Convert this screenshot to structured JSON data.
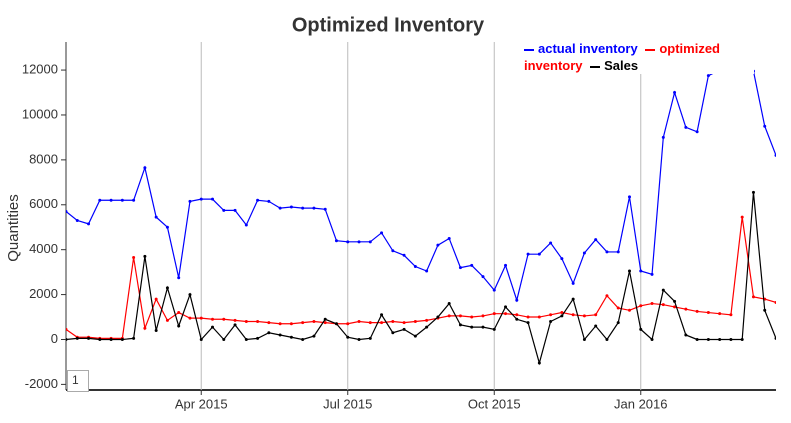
{
  "chart_data": {
    "type": "line",
    "title": "Optimized Inventory",
    "ylabel": "Quantities",
    "categories": [
      null,
      null,
      null,
      null,
      null,
      null,
      null,
      null,
      null,
      null,
      null,
      null,
      "Apr 2015",
      null,
      null,
      null,
      null,
      null,
      null,
      null,
      null,
      null,
      null,
      null,
      null,
      "Jul 2015",
      null,
      null,
      null,
      null,
      null,
      null,
      null,
      null,
      null,
      null,
      null,
      null,
      "Oct 2015",
      null,
      null,
      null,
      null,
      null,
      null,
      null,
      null,
      null,
      null,
      null,
      null,
      "Jan 2016",
      null,
      null,
      null,
      null,
      null,
      null,
      null,
      null,
      null,
      null,
      null,
      null
    ],
    "series": [
      {
        "name": "actual inventory",
        "color": "#0000ff",
        "values": [
          5700,
          5300,
          5150,
          6200,
          6200,
          6200,
          6200,
          7650,
          5450,
          5000,
          2750,
          6150,
          6250,
          6250,
          5750,
          5750,
          5100,
          6200,
          6150,
          5850,
          5900,
          5850,
          5850,
          5800,
          4400,
          4350,
          4350,
          4350,
          4750,
          3950,
          3750,
          3250,
          3050,
          4200,
          4500,
          3200,
          3300,
          2800,
          2200,
          3300,
          1750,
          3800,
          3800,
          4300,
          3600,
          2500,
          3850,
          4450,
          3900,
          3900,
          6350,
          3050,
          2900,
          9000,
          11000,
          9450,
          9250,
          11750,
          12000,
          12050,
          12000,
          11950,
          9500,
          8200
        ]
      },
      {
        "name": "optimized inventory",
        "color": "#ff0000",
        "values": [
          450,
          100,
          100,
          50,
          50,
          50,
          3650,
          500,
          1800,
          850,
          1200,
          950,
          950,
          900,
          900,
          850,
          800,
          800,
          750,
          700,
          700,
          750,
          800,
          750,
          700,
          700,
          800,
          750,
          750,
          800,
          750,
          800,
          850,
          950,
          1050,
          1050,
          1000,
          1050,
          1150,
          1150,
          1100,
          1000,
          1000,
          1100,
          1200,
          1100,
          1050,
          1100,
          1950,
          1400,
          1300,
          1500,
          1600,
          1550,
          1450,
          1350,
          1250,
          1200,
          1150,
          1100,
          5450,
          1900,
          1800,
          1650
        ]
      },
      {
        "name": "Sales",
        "color": "#000000",
        "values": [
          0,
          50,
          50,
          0,
          0,
          0,
          50,
          3700,
          400,
          2300,
          600,
          2000,
          0,
          550,
          0,
          650,
          0,
          50,
          300,
          200,
          100,
          0,
          150,
          900,
          700,
          100,
          0,
          50,
          1100,
          300,
          450,
          150,
          550,
          1000,
          1600,
          650,
          550,
          550,
          450,
          1450,
          900,
          750,
          -1050,
          800,
          1050,
          1800,
          0,
          600,
          0,
          750,
          3050,
          450,
          0,
          2200,
          1700,
          200,
          0,
          0,
          0,
          0,
          0,
          6550,
          1300,
          50
        ]
      }
    ],
    "ylim": [
      -2250,
      13250
    ],
    "yticks": [
      -2000,
      0,
      2000,
      4000,
      6000,
      8000,
      10000,
      12000
    ],
    "xgrid": true,
    "legend": "top-right"
  },
  "widget_label": "1"
}
